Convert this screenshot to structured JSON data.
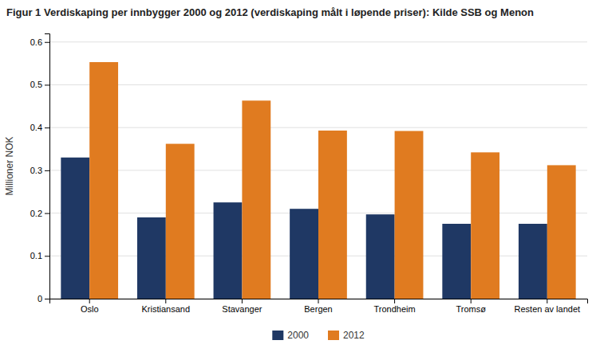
{
  "chart_data": {
    "type": "bar",
    "title": "Figur 1 Verdiskaping per innbygger 2000 og 2012 (verdiskaping målt i løpende priser): Kilde SSB og Menon",
    "y_label": "Millioner NOK",
    "categories": [
      "Oslo",
      "Kristiansand",
      "Stavanger",
      "Bergen",
      "Trondheim",
      "Tromsø",
      "Resten av landet"
    ],
    "series": [
      {
        "name": "2000",
        "color": "#1F3864",
        "values": [
          0.33,
          0.19,
          0.225,
          0.21,
          0.197,
          0.175,
          0.175
        ]
      },
      {
        "name": "2012",
        "color": "#E07B20",
        "values": [
          0.553,
          0.362,
          0.463,
          0.393,
          0.392,
          0.342,
          0.312
        ]
      }
    ],
    "ylim": [
      0,
      0.62
    ],
    "yticks": [
      0,
      0.1,
      0.2,
      0.3,
      0.4,
      0.5,
      0.6
    ],
    "grid": true,
    "legend": "bottom"
  }
}
